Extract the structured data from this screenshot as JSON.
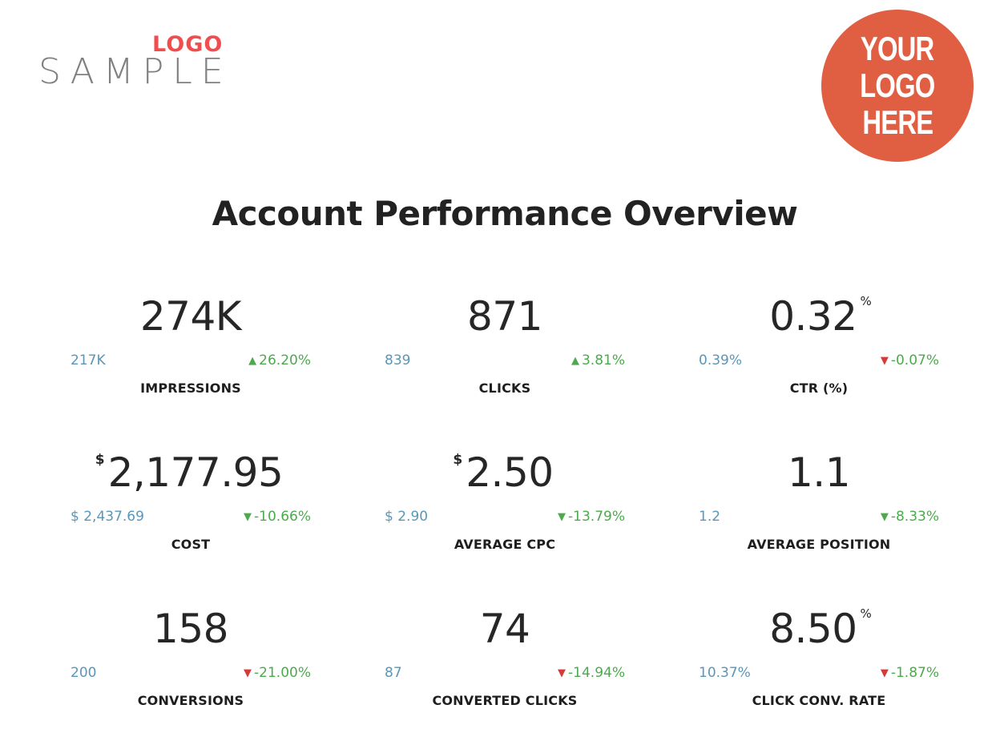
{
  "logos": {
    "left": {
      "small_word": "LOGO",
      "large_word": "SAMPLE",
      "small_color": "#f04e4e",
      "large_color": "#808080"
    },
    "right": {
      "lines": [
        "YOUR",
        "LOGO",
        "HERE"
      ],
      "background": "#e05f43",
      "text_color": "#ffffff"
    }
  },
  "title": "Account Performance Overview",
  "colors": {
    "previous_value": "#5a96b8",
    "change_text": "#4caa4c",
    "arrow_up": "#4caa4c",
    "arrow_down_good": "#4caa4c",
    "arrow_down_bad": "#d43a3a"
  },
  "metrics": [
    {
      "label": "IMPRESSIONS",
      "value": "274K",
      "prefix": "",
      "suffix": "",
      "previous": "217K",
      "change": "26.20%",
      "direction": "up",
      "arrow_color": "green"
    },
    {
      "label": "CLICKS",
      "value": "871",
      "prefix": "",
      "suffix": "",
      "previous": "839",
      "change": "3.81%",
      "direction": "up",
      "arrow_color": "green"
    },
    {
      "label": "CTR (%)",
      "value": "0.32",
      "prefix": "",
      "suffix": "%",
      "previous": "0.39%",
      "change": "-0.07%",
      "direction": "down",
      "arrow_color": "red"
    },
    {
      "label": "COST",
      "value": "2,177.95",
      "prefix": "$",
      "suffix": "",
      "previous": "$ 2,437.69",
      "change": "-10.66%",
      "direction": "down",
      "arrow_color": "green"
    },
    {
      "label": "AVERAGE CPC",
      "value": "2.50",
      "prefix": "$",
      "suffix": "",
      "previous": "$ 2.90",
      "change": "-13.79%",
      "direction": "down",
      "arrow_color": "green"
    },
    {
      "label": "AVERAGE POSITION",
      "value": "1.1",
      "prefix": "",
      "suffix": "",
      "previous": "1.2",
      "change": "-8.33%",
      "direction": "down",
      "arrow_color": "green"
    },
    {
      "label": "CONVERSIONS",
      "value": "158",
      "prefix": "",
      "suffix": "",
      "previous": "200",
      "change": "-21.00%",
      "direction": "down",
      "arrow_color": "red"
    },
    {
      "label": "CONVERTED CLICKS",
      "value": "74",
      "prefix": "",
      "suffix": "",
      "previous": "87",
      "change": "-14.94%",
      "direction": "down",
      "arrow_color": "red"
    },
    {
      "label": "CLICK CONV. RATE",
      "value": "8.50",
      "prefix": "",
      "suffix": "%",
      "previous": "10.37%",
      "change": "-1.87%",
      "direction": "down",
      "arrow_color": "red"
    }
  ]
}
